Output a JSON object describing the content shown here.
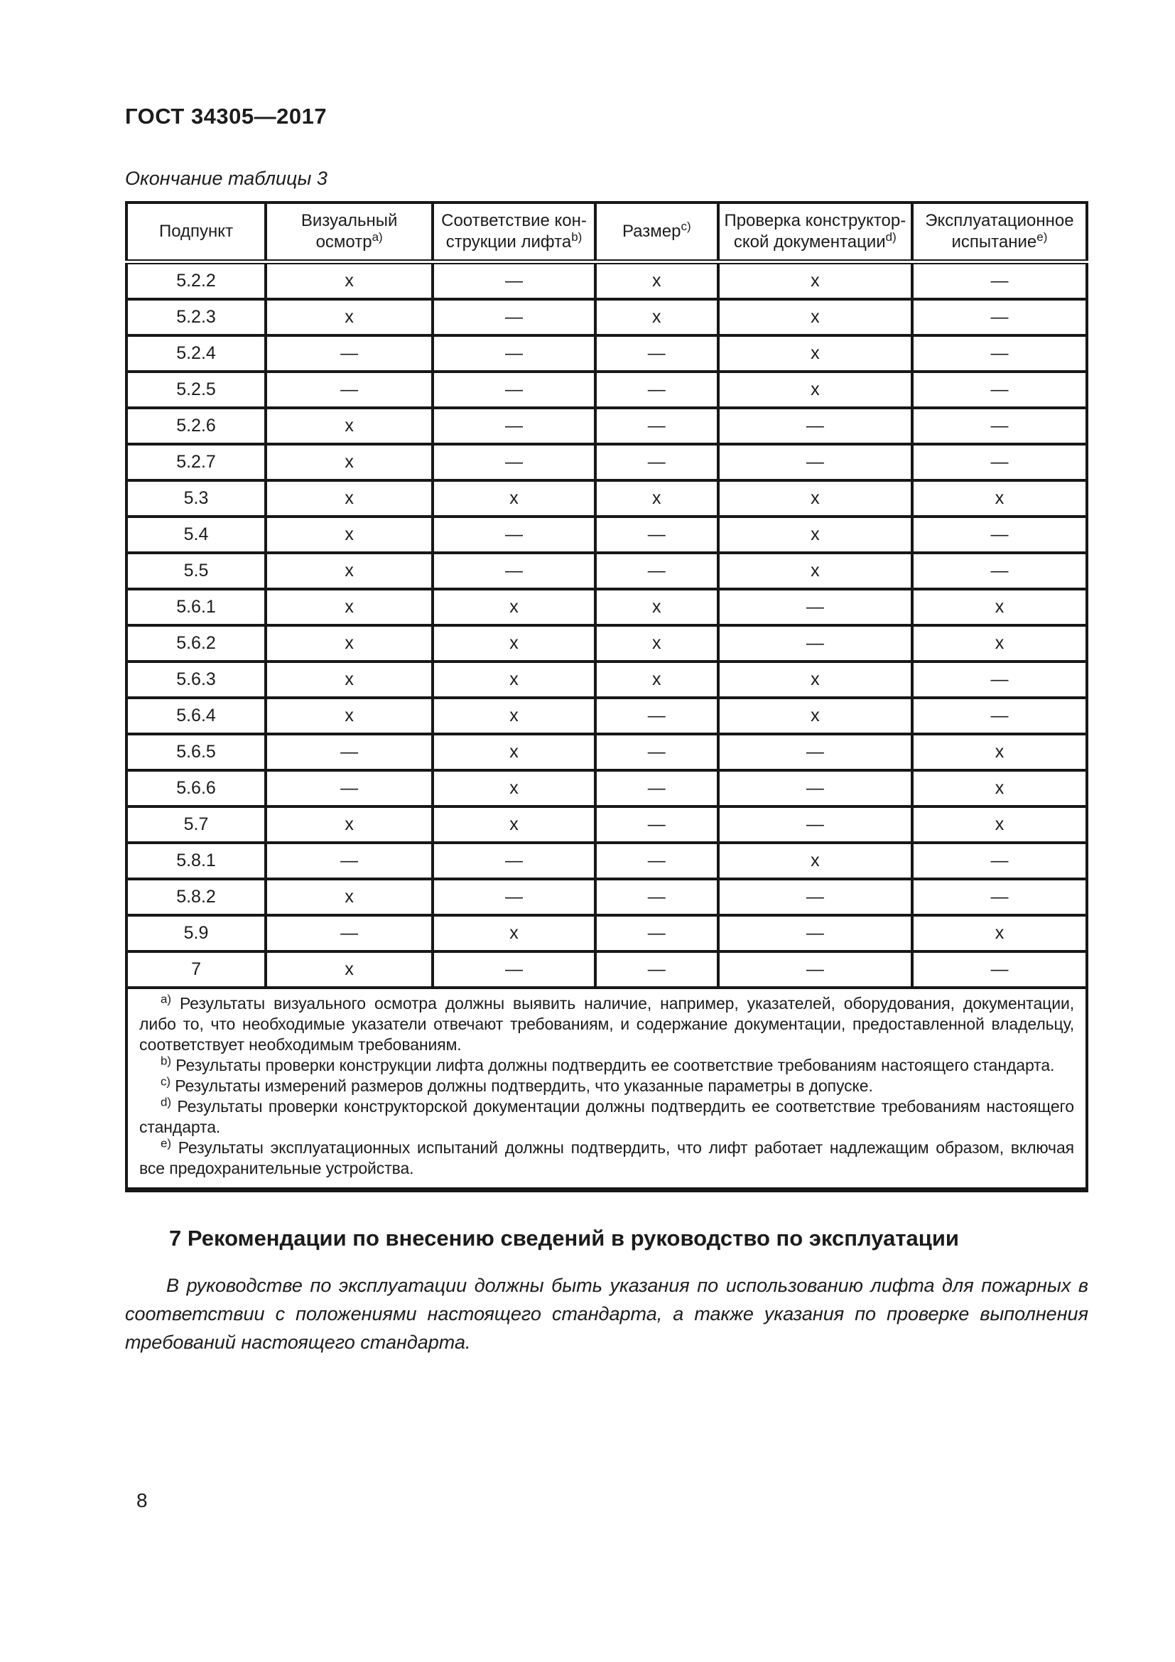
{
  "page": {
    "doc_code": "ГОСТ 34305—2017",
    "table_caption": "Окончание таблицы 3",
    "page_number": "8"
  },
  "table": {
    "columns": [
      {
        "lines": [
          "Подпункт"
        ],
        "sup": ""
      },
      {
        "lines": [
          "Визуальный",
          "осмотр"
        ],
        "sup": "a)"
      },
      {
        "lines": [
          "Соответствие кон-",
          "струкции лифта"
        ],
        "sup": "b)"
      },
      {
        "lines": [
          "Размер"
        ],
        "sup": "c)"
      },
      {
        "lines": [
          "Проверка конструктор-",
          "ской документации"
        ],
        "sup": "d)"
      },
      {
        "lines": [
          "Эксплуатационное",
          "испытание"
        ],
        "sup": "e)"
      }
    ],
    "rows": [
      {
        "id": "5.2.2",
        "marks": [
          "x",
          "—",
          "x",
          "x",
          "—"
        ]
      },
      {
        "id": "5.2.3",
        "marks": [
          "x",
          "—",
          "x",
          "x",
          "—"
        ]
      },
      {
        "id": "5.2.4",
        "marks": [
          "—",
          "—",
          "—",
          "x",
          "—"
        ]
      },
      {
        "id": "5.2.5",
        "marks": [
          "—",
          "—",
          "—",
          "x",
          "—"
        ]
      },
      {
        "id": "5.2.6",
        "marks": [
          "x",
          "—",
          "—",
          "—",
          "—"
        ]
      },
      {
        "id": "5.2.7",
        "marks": [
          "x",
          "—",
          "—",
          "—",
          "—"
        ]
      },
      {
        "id": "5.3",
        "marks": [
          "x",
          "x",
          "x",
          "x",
          "x"
        ]
      },
      {
        "id": "5.4",
        "marks": [
          "x",
          "—",
          "—",
          "x",
          "—"
        ]
      },
      {
        "id": "5.5",
        "marks": [
          "x",
          "—",
          "—",
          "x",
          "—"
        ]
      },
      {
        "id": "5.6.1",
        "marks": [
          "x",
          "x",
          "x",
          "—",
          "x"
        ]
      },
      {
        "id": "5.6.2",
        "marks": [
          "x",
          "x",
          "x",
          "—",
          "x"
        ]
      },
      {
        "id": "5.6.3",
        "marks": [
          "x",
          "x",
          "x",
          "x",
          "—"
        ]
      },
      {
        "id": "5.6.4",
        "marks": [
          "x",
          "x",
          "—",
          "x",
          "—"
        ]
      },
      {
        "id": "5.6.5",
        "marks": [
          "—",
          "x",
          "—",
          "—",
          "x"
        ]
      },
      {
        "id": "5.6.6",
        "marks": [
          "—",
          "x",
          "—",
          "—",
          "x"
        ]
      },
      {
        "id": "5.7",
        "marks": [
          "x",
          "x",
          "—",
          "—",
          "x"
        ]
      },
      {
        "id": "5.8.1",
        "marks": [
          "—",
          "—",
          "—",
          "x",
          "—"
        ]
      },
      {
        "id": "5.8.2",
        "marks": [
          "x",
          "—",
          "—",
          "—",
          "—"
        ]
      },
      {
        "id": "5.9",
        "marks": [
          "—",
          "x",
          "—",
          "—",
          "x"
        ]
      },
      {
        "id": "7",
        "marks": [
          "x",
          "—",
          "—",
          "—",
          "—"
        ]
      }
    ],
    "footnotes": [
      {
        "mark": "a)",
        "text": "Результаты визуального осмотра должны выявить наличие, например, указателей, оборудования, документации, либо то, что необходимые указатели отвечают требованиям, и содержание документации, предоставленной владельцу, соответствует необходимым требованиям."
      },
      {
        "mark": "b)",
        "text": "Результаты проверки конструкции лифта должны подтвердить ее соответствие требованиям настоящего стандарта."
      },
      {
        "mark": "c)",
        "text": "Результаты измерений размеров должны подтвердить, что указанные параметры в допуске."
      },
      {
        "mark": "d)",
        "text": "Результаты проверки конструкторской документации должны подтвердить ее соответствие требованиям настоящего стандарта."
      },
      {
        "mark": "e)",
        "text": "Результаты эксплуатационных испытаний должны подтвердить, что лифт работает надлежащим образом, включая все предохранительные устройства."
      }
    ]
  },
  "section": {
    "heading": "7 Рекомендации по внесению сведений в руководство по эксплуатации",
    "paragraph": "В руководстве по эксплуатации должны быть указания по использованию лифта для пожарных в соответствии с положениями настоящего стандарта, а также указания по проверке выполнения требований настоящего стандарта."
  }
}
